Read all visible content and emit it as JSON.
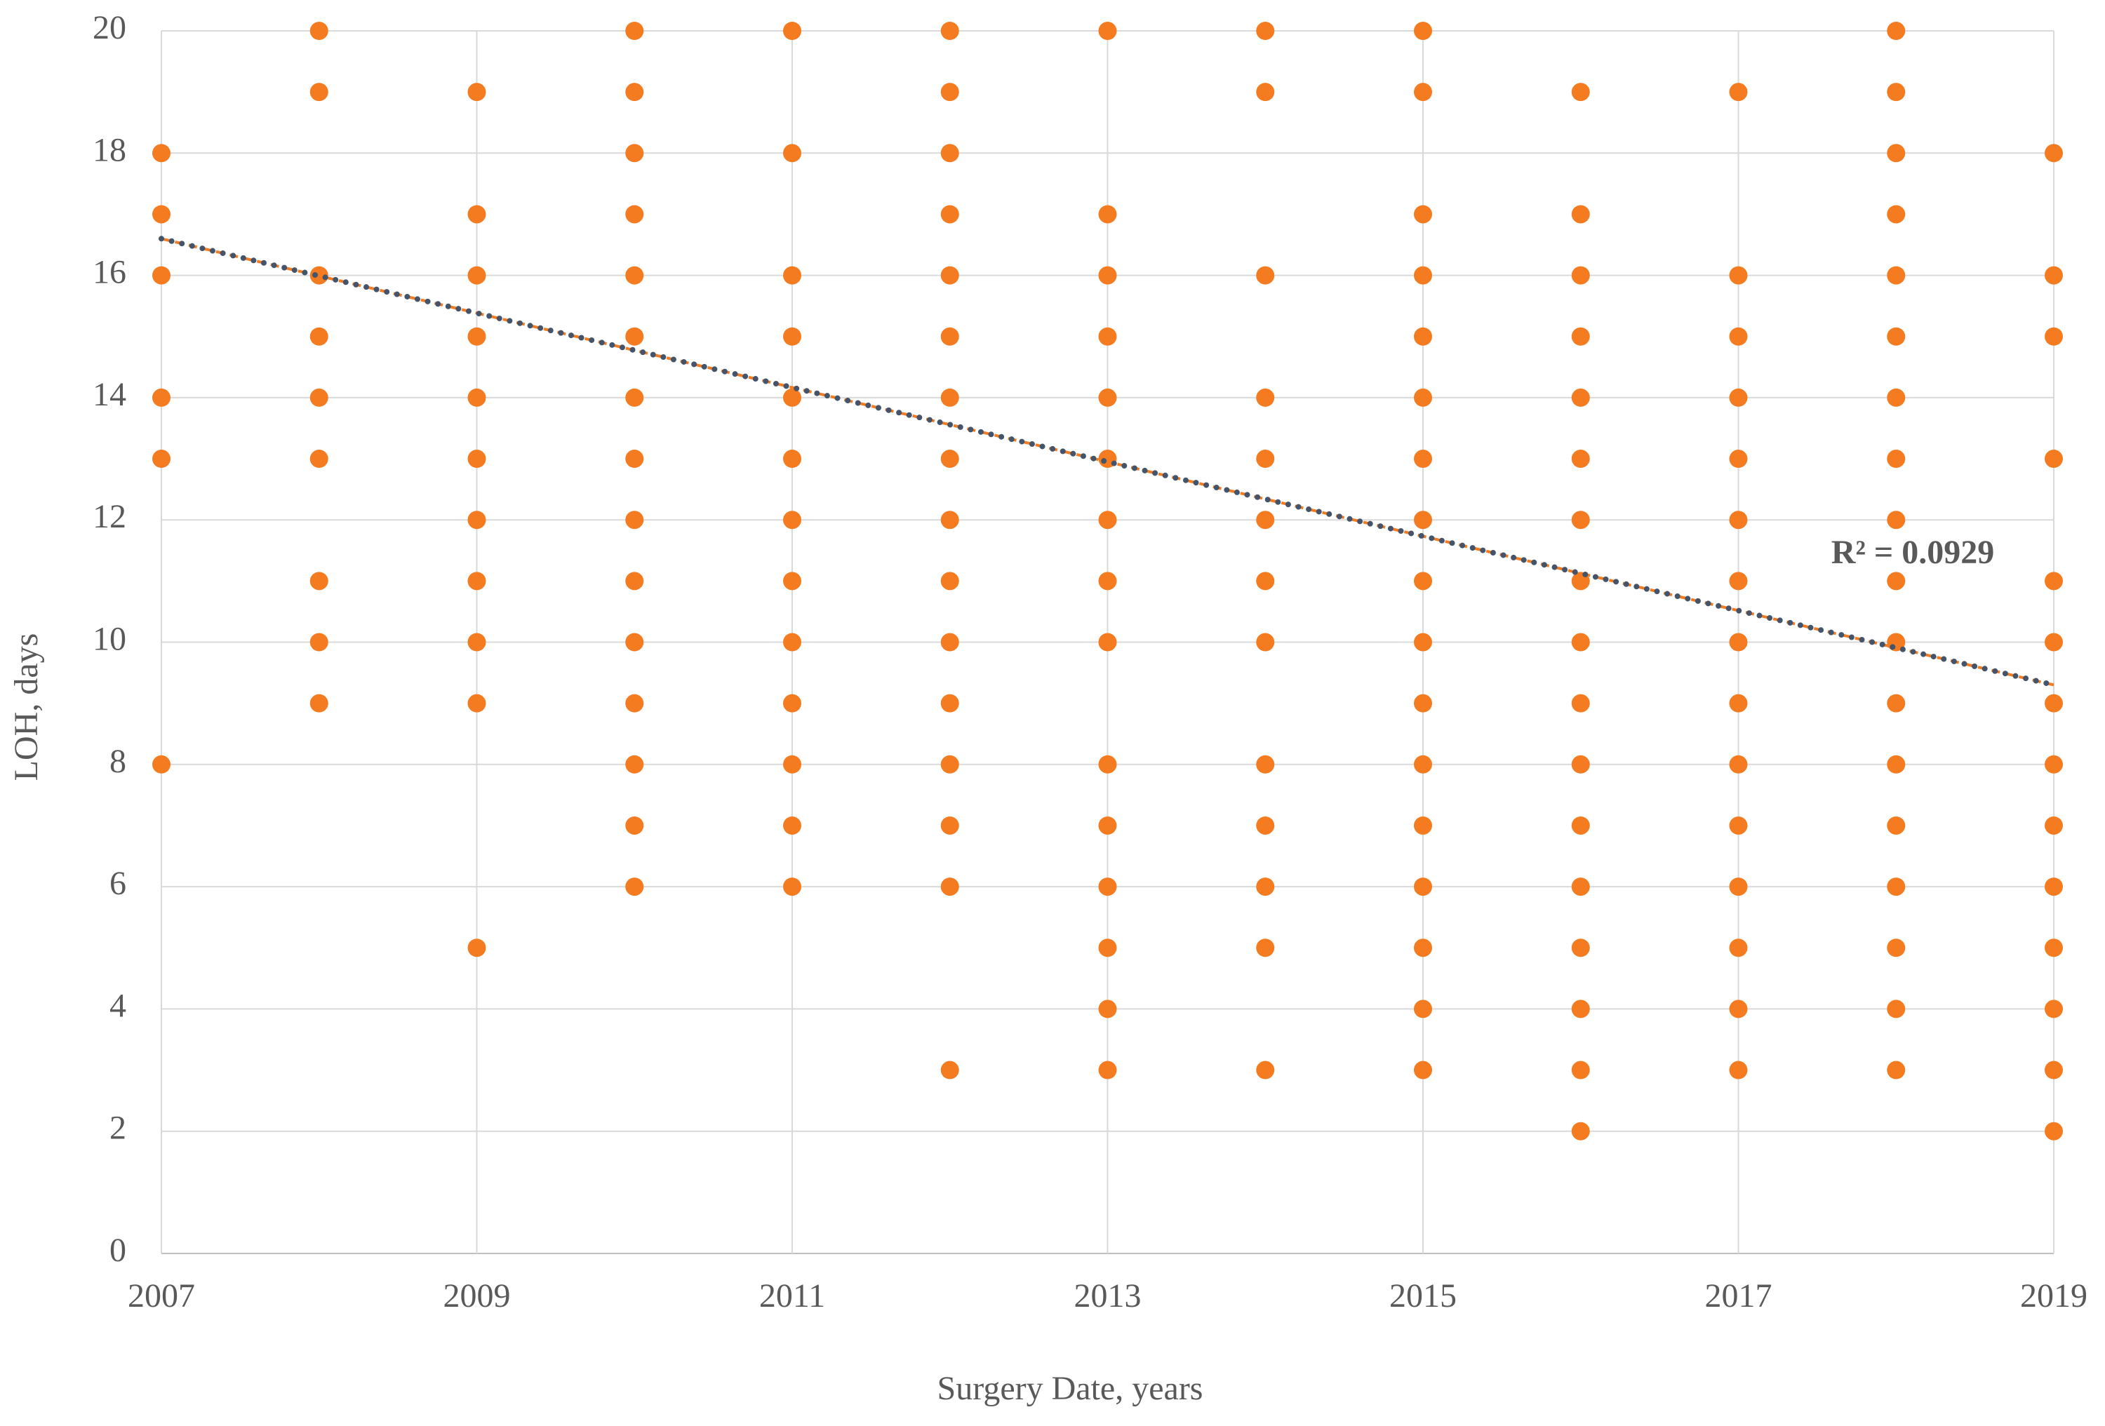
{
  "chart_data": {
    "type": "scatter",
    "x_label": "Surgery Date, years",
    "y_label": "LOH, days",
    "annotation": "R² = 0.0929",
    "color": "#f47b20",
    "x": [
      2007,
      2007,
      2007,
      2007,
      2007,
      2007,
      2008,
      2008,
      2008,
      2008,
      2008,
      2008,
      2008,
      2008,
      2008,
      2009,
      2009,
      2009,
      2009,
      2009,
      2009,
      2009,
      2009,
      2009,
      2009,
      2009,
      2010,
      2010,
      2010,
      2010,
      2010,
      2010,
      2010,
      2010,
      2010,
      2010,
      2010,
      2010,
      2010,
      2010,
      2010,
      2011,
      2011,
      2011,
      2011,
      2011,
      2011,
      2011,
      2011,
      2011,
      2011,
      2011,
      2011,
      2011,
      2012,
      2012,
      2012,
      2012,
      2012,
      2012,
      2012,
      2012,
      2012,
      2012,
      2012,
      2012,
      2012,
      2012,
      2012,
      2012,
      2013,
      2013,
      2013,
      2013,
      2013,
      2013,
      2013,
      2013,
      2013,
      2013,
      2013,
      2013,
      2013,
      2013,
      2013,
      2014,
      2014,
      2014,
      2014,
      2014,
      2014,
      2014,
      2014,
      2014,
      2014,
      2014,
      2014,
      2014,
      2015,
      2015,
      2015,
      2015,
      2015,
      2015,
      2015,
      2015,
      2015,
      2015,
      2015,
      2015,
      2015,
      2015,
      2015,
      2015,
      2015,
      2016,
      2016,
      2016,
      2016,
      2016,
      2016,
      2016,
      2016,
      2016,
      2016,
      2016,
      2016,
      2016,
      2016,
      2016,
      2016,
      2016,
      2017,
      2017,
      2017,
      2017,
      2017,
      2017,
      2017,
      2017,
      2017,
      2017,
      2017,
      2017,
      2017,
      2017,
      2017,
      2018,
      2018,
      2018,
      2018,
      2018,
      2018,
      2018,
      2018,
      2018,
      2018,
      2018,
      2018,
      2018,
      2018,
      2018,
      2018,
      2018,
      2018,
      2019,
      2019,
      2019,
      2019,
      2019,
      2019,
      2019,
      2019,
      2019,
      2019,
      2019,
      2019,
      2019,
      2019
    ],
    "y": [
      18,
      17,
      16,
      14,
      13,
      8,
      20,
      19,
      16,
      15,
      14,
      13,
      11,
      10,
      9,
      19,
      17,
      16,
      15,
      14,
      13,
      12,
      11,
      10,
      9,
      5,
      20,
      19,
      18,
      17,
      16,
      15,
      14,
      13,
      12,
      11,
      10,
      9,
      8,
      7,
      6,
      20,
      18,
      16,
      15,
      14,
      13,
      12,
      11,
      10,
      9,
      8,
      7,
      6,
      20,
      19,
      18,
      17,
      16,
      15,
      14,
      13,
      12,
      11,
      10,
      9,
      8,
      7,
      6,
      3,
      20,
      17,
      16,
      15,
      14,
      13,
      12,
      11,
      10,
      8,
      7,
      6,
      5,
      4,
      3,
      20,
      19,
      16,
      14,
      13,
      12,
      11,
      10,
      8,
      7,
      6,
      5,
      3,
      20,
      19,
      17,
      16,
      15,
      14,
      13,
      12,
      11,
      10,
      9,
      8,
      7,
      6,
      5,
      4,
      3,
      19,
      17,
      16,
      15,
      14,
      13,
      12,
      11,
      10,
      9,
      8,
      7,
      6,
      5,
      4,
      3,
      2,
      19,
      16,
      15,
      14,
      13,
      12,
      11,
      10,
      9,
      8,
      7,
      6,
      5,
      4,
      3,
      20,
      19,
      18,
      17,
      16,
      15,
      14,
      13,
      12,
      11,
      10,
      9,
      8,
      7,
      6,
      5,
      4,
      3,
      18,
      16,
      15,
      13,
      11,
      10,
      9,
      8,
      7,
      6,
      5,
      4,
      3,
      2
    ],
    "trendline": {
      "x": [
        2007,
        2019
      ],
      "y": [
        16.6,
        9.3
      ],
      "color": "#44546a"
    },
    "xlim": [
      2007,
      2019
    ],
    "xticks": [
      2007,
      2009,
      2011,
      2013,
      2015,
      2017,
      2019
    ],
    "ylim": [
      0,
      20
    ],
    "yticks": [
      0,
      2,
      4,
      6,
      8,
      10,
      12,
      14,
      16,
      18,
      20
    ],
    "grid": true
  }
}
